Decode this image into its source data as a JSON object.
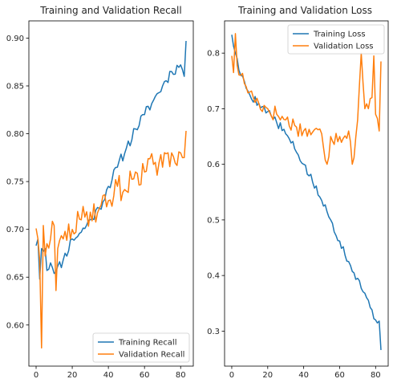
{
  "colors": {
    "training": "#1f77b4",
    "validation": "#ff7f0e"
  },
  "chart_data": [
    {
      "type": "line",
      "title": "Training and Validation Recall",
      "xlabel": "",
      "ylabel": "",
      "xlim": [
        -4,
        87
      ],
      "ylim": [
        0.557,
        0.918
      ],
      "xticks": [
        0,
        20,
        40,
        60,
        80
      ],
      "xtick_labels": [
        "0",
        "20",
        "40",
        "60",
        "80"
      ],
      "yticks": [
        0.6,
        0.65,
        0.7,
        0.75,
        0.8,
        0.85,
        0.9
      ],
      "ytick_labels": [
        "0.60",
        "0.65",
        "0.70",
        "0.75",
        "0.80",
        "0.85",
        "0.90"
      ],
      "legend_position": "lower-right",
      "grid": false,
      "series": [
        {
          "name": "Training Recall",
          "color": "#1f77b4",
          "anchors": [
            [
              0,
              0.683
            ],
            [
              1,
              0.69
            ],
            [
              2,
              0.648
            ],
            [
              3,
              0.68
            ],
            [
              5,
              0.68
            ],
            [
              6,
              0.657
            ],
            [
              8,
              0.665
            ],
            [
              11,
              0.656
            ],
            [
              15,
              0.668
            ],
            [
              20,
              0.69
            ],
            [
              25,
              0.697
            ],
            [
              30,
              0.71
            ],
            [
              35,
              0.722
            ],
            [
              40,
              0.745
            ],
            [
              45,
              0.765
            ],
            [
              50,
              0.785
            ],
            [
              55,
              0.805
            ],
            [
              60,
              0.82
            ],
            [
              65,
              0.835
            ],
            [
              70,
              0.85
            ],
            [
              75,
              0.865
            ],
            [
              80,
              0.872
            ],
            [
              82,
              0.86
            ],
            [
              83,
              0.897
            ]
          ],
          "noise": 0.006,
          "seed": 11
        },
        {
          "name": "Validation Recall",
          "color": "#ff7f0e",
          "anchors": [
            [
              0,
              0.701
            ],
            [
              1,
              0.69
            ],
            [
              2,
              0.668
            ],
            [
              3,
              0.576
            ],
            [
              4,
              0.704
            ],
            [
              5,
              0.672
            ],
            [
              6,
              0.685
            ],
            [
              8,
              0.69
            ],
            [
              10,
              0.704
            ],
            [
              11,
              0.636
            ],
            [
              12,
              0.68
            ],
            [
              15,
              0.69
            ],
            [
              20,
              0.7
            ],
            [
              25,
              0.71
            ],
            [
              30,
              0.718
            ],
            [
              35,
              0.722
            ],
            [
              40,
              0.73
            ],
            [
              45,
              0.745
            ],
            [
              50,
              0.74
            ],
            [
              55,
              0.76
            ],
            [
              60,
              0.76
            ],
            [
              65,
              0.768
            ],
            [
              70,
              0.765
            ],
            [
              75,
              0.78
            ],
            [
              80,
              0.78
            ],
            [
              82,
              0.775
            ],
            [
              83,
              0.803
            ]
          ],
          "noise": 0.014,
          "seed": 29
        }
      ]
    },
    {
      "type": "line",
      "title": "Training and Validation Loss",
      "xlabel": "",
      "ylabel": "",
      "xlim": [
        -4,
        87
      ],
      "ylim": [
        0.237,
        0.858
      ],
      "xticks": [
        0,
        20,
        40,
        60,
        80
      ],
      "xtick_labels": [
        "0",
        "20",
        "40",
        "60",
        "80"
      ],
      "yticks": [
        0.3,
        0.4,
        0.5,
        0.6,
        0.7,
        0.8
      ],
      "ytick_labels": [
        "0.3",
        "0.4",
        "0.5",
        "0.6",
        "0.7",
        "0.8"
      ],
      "legend_position": "upper-right",
      "grid": false,
      "series": [
        {
          "name": "Training Loss",
          "color": "#1f77b4",
          "anchors": [
            [
              0,
              0.833
            ],
            [
              2,
              0.8
            ],
            [
              5,
              0.76
            ],
            [
              10,
              0.725
            ],
            [
              15,
              0.71
            ],
            [
              20,
              0.695
            ],
            [
              25,
              0.675
            ],
            [
              30,
              0.655
            ],
            [
              35,
              0.628
            ],
            [
              40,
              0.6
            ],
            [
              45,
              0.568
            ],
            [
              50,
              0.535
            ],
            [
              55,
              0.5
            ],
            [
              60,
              0.462
            ],
            [
              65,
              0.425
            ],
            [
              70,
              0.395
            ],
            [
              75,
              0.36
            ],
            [
              80,
              0.32
            ],
            [
              82,
              0.318
            ],
            [
              83,
              0.266
            ]
          ],
          "noise": 0.008,
          "seed": 5
        },
        {
          "name": "Validation Loss",
          "color": "#ff7f0e",
          "anchors": [
            [
              0,
              0.795
            ],
            [
              1,
              0.765
            ],
            [
              2,
              0.835
            ],
            [
              3,
              0.778
            ],
            [
              5,
              0.76
            ],
            [
              8,
              0.74
            ],
            [
              10,
              0.73
            ],
            [
              12,
              0.72
            ],
            [
              15,
              0.71
            ],
            [
              20,
              0.7
            ],
            [
              25,
              0.69
            ],
            [
              30,
              0.68
            ],
            [
              35,
              0.67
            ],
            [
              40,
              0.66
            ],
            [
              45,
              0.658
            ],
            [
              50,
              0.655
            ],
            [
              53,
              0.6
            ],
            [
              55,
              0.65
            ],
            [
              60,
              0.65
            ],
            [
              65,
              0.66
            ],
            [
              67,
              0.6
            ],
            [
              70,
              0.68
            ],
            [
              72,
              0.8
            ],
            [
              74,
              0.7
            ],
            [
              76,
              0.7
            ],
            [
              78,
              0.72
            ],
            [
              79,
              0.795
            ],
            [
              80,
              0.69
            ],
            [
              82,
              0.66
            ],
            [
              83,
              0.785
            ]
          ],
          "noise": 0.016,
          "seed": 17
        }
      ]
    }
  ]
}
